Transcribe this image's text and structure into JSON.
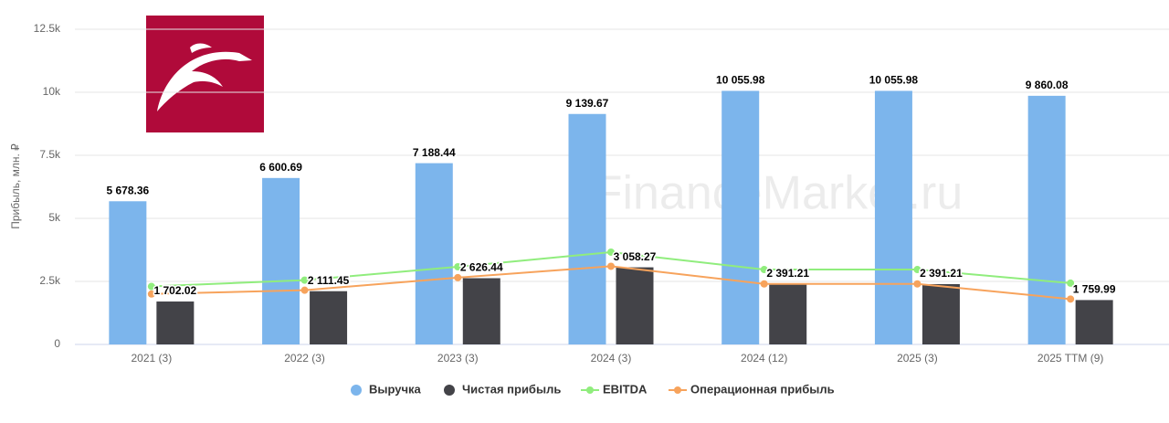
{
  "chart_data": {
    "type": "bar",
    "y_axis_label": "Прибыль, млн. ₽",
    "watermark": "FinanceMarker.ru",
    "categories": [
      "2021 (3)",
      "2022 (3)",
      "2023 (3)",
      "2024 (3)",
      "2024 (12)",
      "2025 (3)",
      "2025 TTM (9)"
    ],
    "series": [
      {
        "name": "Выручка",
        "type": "bar",
        "color": "#7cb5ec",
        "values": [
          5678.36,
          6600.69,
          7188.44,
          9139.67,
          10055.98,
          10055.98,
          9860.08
        ],
        "value_labels": [
          "5 678.36",
          "6 600.69",
          "7 188.44",
          "9 139.67",
          "10 055.98",
          "10 055.98",
          "9 860.08"
        ]
      },
      {
        "name": "Чистая прибыль",
        "type": "bar",
        "color": "#434348",
        "values": [
          1702.02,
          2111.45,
          2626.44,
          3058.27,
          2391.21,
          2391.21,
          1759.99
        ],
        "value_labels": [
          "1 702.02",
          "2 111.45",
          "2 626.44",
          "3 058.27",
          "2 391.21",
          "2 391.21",
          "1 759.99"
        ]
      },
      {
        "name": "EBITDA",
        "type": "line",
        "color": "#90ed7d",
        "values": [
          2300,
          2550,
          3080,
          3660,
          2970,
          2970,
          2430
        ]
      },
      {
        "name": "Операционная прибыль",
        "type": "line",
        "color": "#f7a35c",
        "values": [
          2000,
          2150,
          2650,
          3100,
          2400,
          2400,
          1800
        ]
      }
    ],
    "ylim": [
      0,
      12500
    ],
    "yticks": [
      0,
      {
        "value": 2500,
        "label": "2.5k"
      },
      {
        "value": 5000,
        "label": "5k"
      },
      {
        "value": 7500,
        "label": "7.5k"
      },
      {
        "value": 10000,
        "label": "10k"
      },
      {
        "value": 12500,
        "label": "12.5k"
      }
    ],
    "grid": true
  }
}
